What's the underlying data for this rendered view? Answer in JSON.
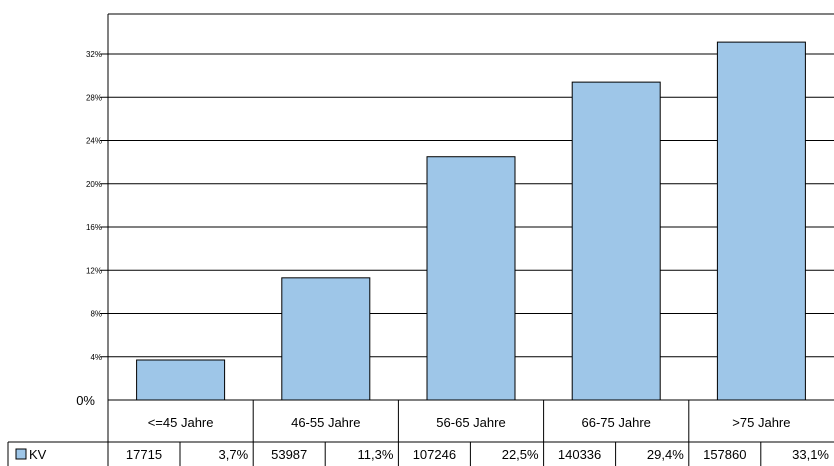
{
  "chart_data": {
    "type": "bar",
    "categories": [
      "<=45 Jahre",
      "46-55 Jahre",
      "56-65 Jahre",
      "66-75 Jahre",
      ">75 Jahre"
    ],
    "series": [
      {
        "name": "KV",
        "values": [
          3.7,
          11.3,
          22.5,
          29.4,
          33.1
        ],
        "counts": [
          "17715",
          "53987",
          "107246",
          "140336",
          "157860"
        ],
        "percent_labels": [
          "3,7%",
          "11,3%",
          "22,5%",
          "29,4%",
          "33,1%"
        ],
        "color": "#9ec6e8"
      }
    ],
    "yticks": [
      {
        "value": 0,
        "label": "0%"
      },
      {
        "value": 4,
        "label": "4%"
      },
      {
        "value": 8,
        "label": "8%"
      },
      {
        "value": 12,
        "label": "12%"
      },
      {
        "value": 16,
        "label": "16%"
      },
      {
        "value": 20,
        "label": "20%"
      },
      {
        "value": 24,
        "label": "24%"
      },
      {
        "value": 28,
        "label": "28%"
      },
      {
        "value": 32,
        "label": "32%"
      }
    ],
    "ylim": [
      0,
      35.7
    ],
    "grid": true,
    "legend": "data-table-left",
    "title": "",
    "xlabel": "",
    "ylabel": ""
  }
}
